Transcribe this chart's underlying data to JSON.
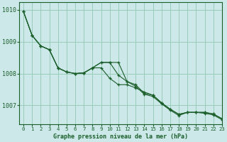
{
  "title": "Graphe pression niveau de la mer (hPa)",
  "background_color": "#cce8e8",
  "grid_color": "#99ccbb",
  "line_color": "#1a5e2a",
  "ylim": [
    1006.4,
    1010.25
  ],
  "xlim": [
    -0.5,
    23
  ],
  "yticks": [
    1007,
    1008,
    1009,
    1010
  ],
  "xticks": [
    0,
    1,
    2,
    3,
    4,
    5,
    6,
    7,
    8,
    9,
    10,
    11,
    12,
    13,
    14,
    15,
    16,
    17,
    18,
    19,
    20,
    21,
    22,
    23
  ],
  "series1": [
    1009.95,
    1009.2,
    1008.87,
    1008.75,
    1008.18,
    1008.05,
    1008.0,
    1008.02,
    1008.18,
    1008.35,
    1008.35,
    1008.35,
    1007.75,
    1007.65,
    1007.38,
    1007.32,
    1007.08,
    1006.88,
    1006.72,
    1006.78,
    1006.78,
    1006.78,
    1006.73,
    1006.58
  ],
  "series2": [
    1009.95,
    1009.2,
    1008.87,
    1008.75,
    1008.18,
    1008.05,
    1008.0,
    1008.02,
    1008.18,
    1008.18,
    1007.85,
    1007.65,
    1007.65,
    1007.55,
    1007.42,
    1007.32,
    1007.08,
    1006.88,
    1006.72,
    1006.78,
    1006.78,
    1006.78,
    1006.73,
    1006.58
  ],
  "series3": [
    1009.95,
    1009.2,
    1008.87,
    1008.75,
    1008.18,
    1008.05,
    1008.0,
    1008.02,
    1008.18,
    1008.35,
    1008.35,
    1007.95,
    1007.75,
    1007.6,
    1007.35,
    1007.28,
    1007.05,
    1006.85,
    1006.68,
    1006.78,
    1006.78,
    1006.75,
    1006.7,
    1006.55
  ]
}
